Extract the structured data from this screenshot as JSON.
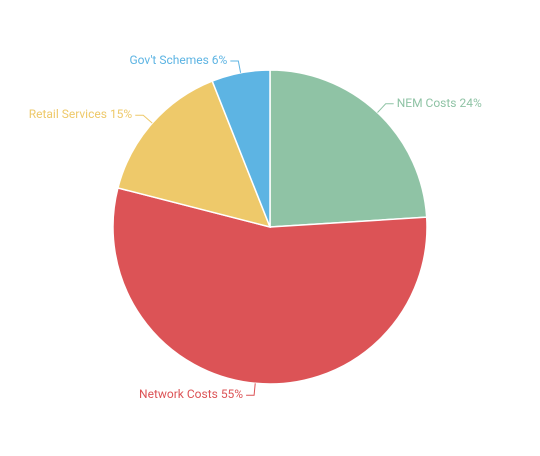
{
  "chart_data": {
    "type": "pie",
    "categories": [
      "NEM Costs",
      "Network Costs",
      "Retail Services",
      "Gov't Schemes"
    ],
    "values": [
      24,
      55,
      15,
      6
    ],
    "value_labels": [
      "24%",
      "55%",
      "15%",
      "6%"
    ],
    "colors": [
      "#8fc3a5",
      "#dc5356",
      "#eec96a",
      "#5db4e3"
    ]
  }
}
